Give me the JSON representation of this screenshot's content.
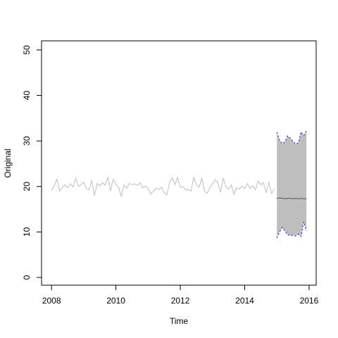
{
  "chart_data": {
    "type": "line",
    "xlabel": "Time",
    "ylabel": "Original",
    "xlim": [
      2007.69,
      2016.22
    ],
    "ylim": [
      -1.7,
      52
    ],
    "xticks": [
      2008,
      2010,
      2012,
      2014,
      2016
    ],
    "yticks": [
      0,
      10,
      20,
      30,
      40,
      50
    ],
    "series": [
      {
        "color": "#bebebe",
        "x": [
          2008,
          2008.083,
          2008.167,
          2008.25,
          2008.333,
          2008.417,
          2008.5,
          2008.583,
          2008.667,
          2008.75,
          2008.833,
          2008.917,
          2009,
          2009.083,
          2009.167,
          2009.25,
          2009.333,
          2009.417,
          2009.5,
          2009.583,
          2009.667,
          2009.75,
          2009.833,
          2009.917,
          2010,
          2010.083,
          2010.167,
          2010.25,
          2010.333,
          2010.417,
          2010.5,
          2010.583,
          2010.667,
          2010.75,
          2010.833,
          2010.917,
          2011,
          2011.083,
          2011.167,
          2011.25,
          2011.333,
          2011.417,
          2011.5,
          2011.583,
          2011.667,
          2011.75,
          2011.833,
          2011.917,
          2012,
          2012.083,
          2012.167,
          2012.25,
          2012.333,
          2012.417,
          2012.5,
          2012.583,
          2012.667,
          2012.75,
          2012.833,
          2012.917,
          2013,
          2013.083,
          2013.167,
          2013.25,
          2013.333,
          2013.417,
          2013.5,
          2013.583,
          2013.667,
          2013.75,
          2013.833,
          2013.917,
          2014,
          2014.083,
          2014.167,
          2014.25,
          2014.333,
          2014.417,
          2014.5,
          2014.583,
          2014.667,
          2014.75,
          2014.833,
          2014.917
        ],
        "values": [
          19.1,
          20.2,
          21.6,
          19.0,
          19.8,
          20.3,
          19.7,
          20.6,
          19.9,
          21.8,
          20.0,
          20.4,
          20.9,
          19.5,
          19.2,
          21.4,
          18.0,
          20.7,
          20.1,
          20.8,
          20.3,
          22.0,
          19.0,
          21.6,
          20.5,
          19.8,
          17.8,
          20.3,
          19.6,
          20.7,
          20.4,
          20.6,
          20.2,
          20.8,
          19.7,
          20.1,
          19.6,
          18.3,
          19.0,
          19.6,
          19.3,
          19.8,
          18.6,
          18.2,
          20.9,
          21.9,
          20.4,
          22.0,
          19.8,
          20.0,
          19.2,
          19.4,
          19.0,
          22.0,
          20.4,
          19.8,
          21.7,
          19.0,
          18.5,
          19.7,
          20.6,
          21.5,
          20.8,
          18.7,
          21.8,
          20.0,
          19.4,
          20.3,
          18.3,
          19.7,
          19.4,
          20.1,
          19.5,
          20.6,
          19.6,
          20.1,
          19.3,
          21.2,
          20.4,
          20.8,
          18.6,
          21.0,
          18.4,
          19.5
        ]
      }
    ],
    "forecast": {
      "fill": "#bebebe",
      "bound_color": "#0000ff",
      "mean_color": "#555555",
      "x": [
        2015,
        2015.083,
        2015.167,
        2015.25,
        2015.333,
        2015.417,
        2015.5,
        2015.583,
        2015.667,
        2015.75,
        2015.833,
        2015.917
      ],
      "mean": [
        17.4,
        17.5,
        17.4,
        17.3,
        17.4,
        17.4,
        17.3,
        17.4,
        17.3,
        17.4,
        17.3,
        17.3
      ],
      "upper": [
        31.9,
        30.2,
        29.4,
        29.8,
        31.1,
        30.6,
        29.9,
        29.3,
        29.6,
        32.0,
        31.2,
        32.2
      ],
      "lower": [
        8.7,
        10.0,
        11.0,
        10.2,
        9.4,
        9.2,
        9.3,
        9.1,
        9.5,
        9.0,
        12.2,
        10.2
      ]
    }
  }
}
